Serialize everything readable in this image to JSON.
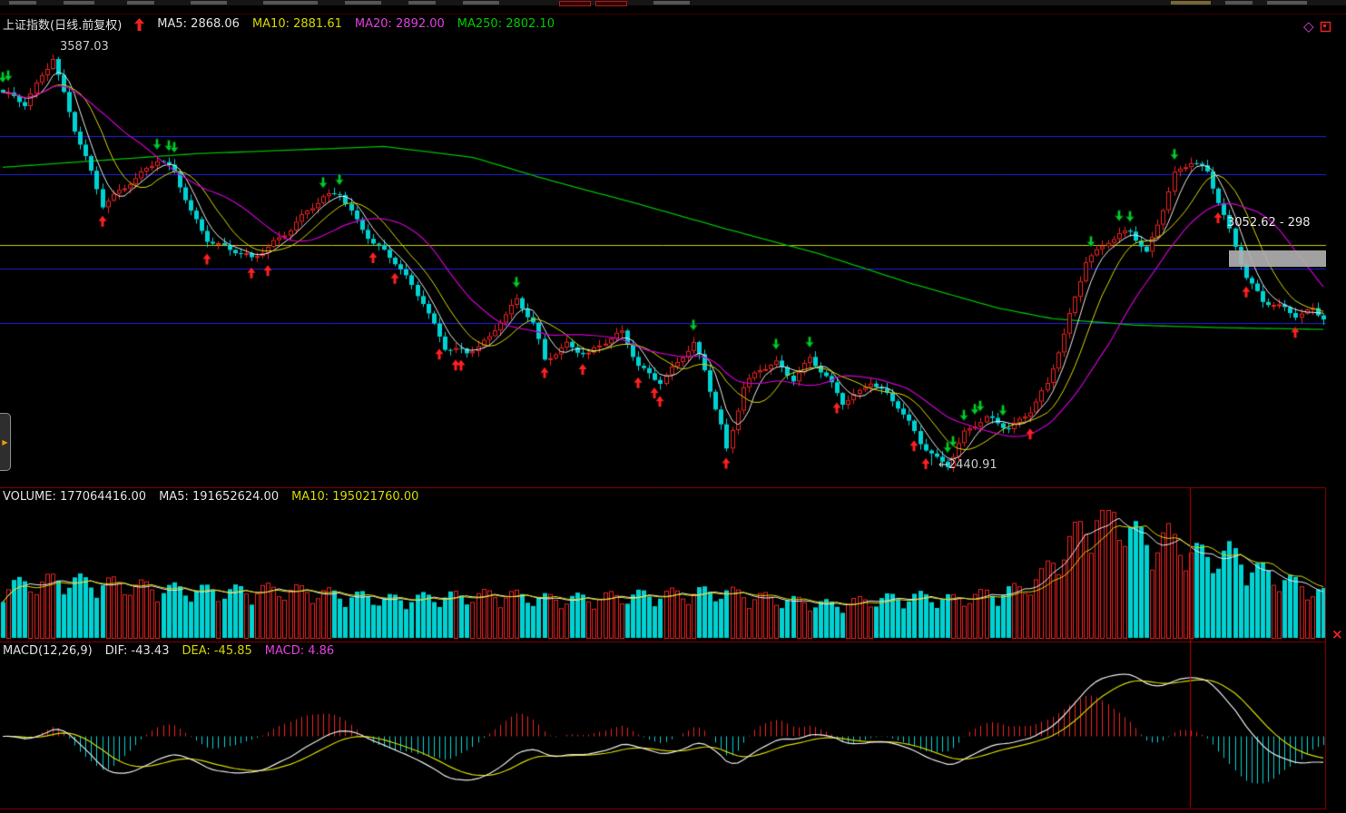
{
  "colors": {
    "background": "#000000",
    "up": "#ee2222",
    "down": "#00d2d2",
    "ma5": "#e8e8e8",
    "ma10": "#d6d600",
    "ma20": "#cc00cc",
    "ma250": "#00bb00",
    "grid_blue": "#2020dd",
    "grid_yellow": "#c8c800",
    "separator": "#8b0000",
    "buy_arrow": "#ff2020",
    "sell_arrow": "#00cc33"
  },
  "main_chart": {
    "title": "上证指数(日线.前复权)",
    "ma_labels": [
      {
        "text": "MA5: 2868.06"
      },
      {
        "text": "MA10: 2881.61"
      },
      {
        "text": "MA20: 2892.00"
      },
      {
        "text": "MA250: 2802.10"
      }
    ],
    "peak_label": "3587.03",
    "low_label": "←2440.91",
    "measure_label": "3052.62 - 298",
    "diamond_icon": "◇",
    "handle_icon": "▶",
    "close_icon": "×"
  },
  "volume_panel": {
    "labels": [
      {
        "text": "VOLUME: 177064416.00"
      },
      {
        "text": "MA5: 191652624.00"
      },
      {
        "text": "MA10: 195021760.00"
      }
    ]
  },
  "macd_panel": {
    "labels": [
      {
        "text": "MACD(12,26,9)"
      },
      {
        "text": "DIF: -43.43"
      },
      {
        "text": "DEA: -45.85"
      },
      {
        "text": "MACD: 4.86"
      }
    ]
  },
  "chart_data": {
    "type": "candlestick",
    "symbol": "上证指数",
    "period": "日线",
    "adjustment": "前复权",
    "bars": 240,
    "price_range": [
      2390,
      3650
    ],
    "close_keypoints": [
      [
        0,
        3480
      ],
      [
        4,
        3440
      ],
      [
        9,
        3587
      ],
      [
        13,
        3380
      ],
      [
        18,
        3160
      ],
      [
        23,
        3240
      ],
      [
        28,
        3290
      ],
      [
        31,
        3250
      ],
      [
        34,
        3150
      ],
      [
        37,
        3080
      ],
      [
        41,
        3040
      ],
      [
        45,
        3010
      ],
      [
        49,
        3070
      ],
      [
        53,
        3120
      ],
      [
        58,
        3180
      ],
      [
        61,
        3205
      ],
      [
        64,
        3130
      ],
      [
        67,
        3060
      ],
      [
        71,
        3000
      ],
      [
        76,
        2905
      ],
      [
        80,
        2770
      ],
      [
        84,
        2745
      ],
      [
        88,
        2800
      ],
      [
        90,
        2855
      ],
      [
        93,
        2905
      ],
      [
        96,
        2830
      ],
      [
        98,
        2725
      ],
      [
        102,
        2785
      ],
      [
        106,
        2755
      ],
      [
        109,
        2780
      ],
      [
        112,
        2805
      ],
      [
        115,
        2725
      ],
      [
        119,
        2680
      ],
      [
        122,
        2720
      ],
      [
        125,
        2775
      ],
      [
        127,
        2705
      ],
      [
        130,
        2560
      ],
      [
        131,
        2490
      ],
      [
        134,
        2660
      ],
      [
        137,
        2700
      ],
      [
        140,
        2725
      ],
      [
        143,
        2690
      ],
      [
        146,
        2745
      ],
      [
        149,
        2680
      ],
      [
        152,
        2610
      ],
      [
        155,
        2650
      ],
      [
        157,
        2685
      ],
      [
        160,
        2640
      ],
      [
        162,
        2600
      ],
      [
        166,
        2500
      ],
      [
        169,
        2465
      ],
      [
        171,
        2450
      ],
      [
        174,
        2530
      ],
      [
        178,
        2565
      ],
      [
        182,
        2550
      ],
      [
        186,
        2600
      ],
      [
        189,
        2660
      ],
      [
        192,
        2800
      ],
      [
        196,
        3020
      ],
      [
        200,
        3070
      ],
      [
        204,
        3085
      ],
      [
        207,
        3030
      ],
      [
        212,
        3260
      ],
      [
        215,
        3285
      ],
      [
        218,
        3250
      ],
      [
        222,
        3100
      ],
      [
        225,
        2975
      ],
      [
        228,
        2895
      ],
      [
        231,
        2875
      ],
      [
        234,
        2860
      ],
      [
        237,
        2885
      ],
      [
        239,
        2860
      ]
    ],
    "ma250_keypoints": [
      [
        0,
        3272
      ],
      [
        35,
        3310
      ],
      [
        69,
        3330
      ],
      [
        85,
        3300
      ],
      [
        99,
        3236
      ],
      [
        115,
        3170
      ],
      [
        131,
        3100
      ],
      [
        148,
        3030
      ],
      [
        164,
        2950
      ],
      [
        180,
        2880
      ],
      [
        190,
        2850
      ],
      [
        205,
        2832
      ],
      [
        220,
        2825
      ],
      [
        239,
        2820
      ]
    ],
    "volume_keypoints": [
      [
        0,
        0.4
      ],
      [
        10,
        0.45
      ],
      [
        20,
        0.42
      ],
      [
        30,
        0.38
      ],
      [
        40,
        0.36
      ],
      [
        50,
        0.38
      ],
      [
        60,
        0.34
      ],
      [
        70,
        0.3
      ],
      [
        80,
        0.32
      ],
      [
        90,
        0.34
      ],
      [
        100,
        0.3
      ],
      [
        110,
        0.32
      ],
      [
        120,
        0.34
      ],
      [
        130,
        0.36
      ],
      [
        140,
        0.3
      ],
      [
        150,
        0.26
      ],
      [
        158,
        0.3
      ],
      [
        166,
        0.32
      ],
      [
        172,
        0.3
      ],
      [
        178,
        0.34
      ],
      [
        184,
        0.38
      ],
      [
        188,
        0.48
      ],
      [
        192,
        0.7
      ],
      [
        196,
        0.88
      ],
      [
        199,
        1.0
      ],
      [
        202,
        0.92
      ],
      [
        205,
        0.8
      ],
      [
        208,
        0.72
      ],
      [
        211,
        0.78
      ],
      [
        214,
        0.7
      ],
      [
        218,
        0.62
      ],
      [
        222,
        0.66
      ],
      [
        226,
        0.55
      ],
      [
        230,
        0.48
      ],
      [
        234,
        0.42
      ],
      [
        239,
        0.34
      ]
    ],
    "hlines": [
      {
        "price": 3360,
        "color": "#2020dd"
      },
      {
        "price": 3252,
        "color": "#2020dd"
      },
      {
        "price": 3055,
        "color": "#c8c800"
      },
      {
        "price": 2990,
        "color": "#2020dd"
      },
      {
        "price": 2838,
        "color": "#2020dd"
      }
    ],
    "buy_markers": [
      18,
      37,
      45,
      48,
      67,
      71,
      79,
      82,
      83,
      98,
      105,
      115,
      118,
      119,
      131,
      151,
      165,
      167,
      186,
      220,
      225,
      234
    ],
    "sell_markers": [
      0,
      1,
      28,
      30,
      31,
      58,
      61,
      93,
      125,
      140,
      146,
      171,
      172,
      174,
      176,
      177,
      181,
      197,
      202,
      204,
      212
    ],
    "annotations": {
      "peak": {
        "bar": 9,
        "price": 3587.03
      },
      "low": {
        "bar": 168,
        "price": 2440.91
      }
    },
    "indicators": {
      "ma_periods": [
        5,
        10,
        20,
        250
      ],
      "macd_params": [
        12,
        26,
        9
      ],
      "current": {
        "ma5": 2868.06,
        "ma10": 2881.61,
        "ma20": 2892.0,
        "ma250": 2802.1,
        "volume": 177064416.0,
        "vol_ma5": 191652624.0,
        "vol_ma10": 195021760.0,
        "dif": -43.43,
        "dea": -45.85,
        "macd": 4.86
      }
    },
    "cursor_line_x_frac": 0.897,
    "measure_box": {
      "price_top": 3040,
      "price_bottom": 2995,
      "from_bar": 222
    }
  }
}
